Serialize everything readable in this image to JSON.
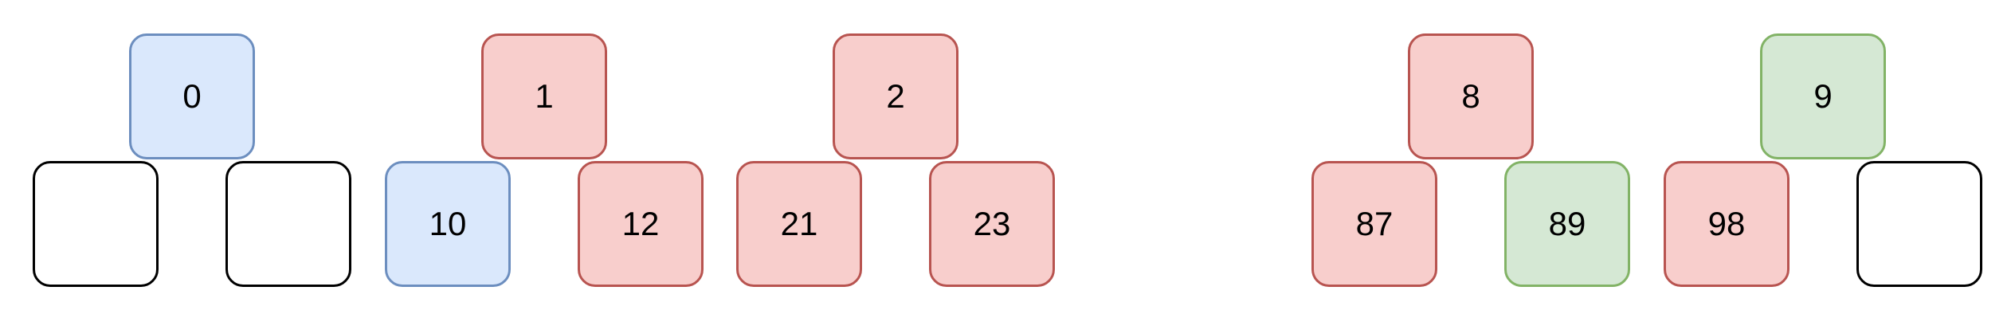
{
  "diagram": {
    "groups": [
      {
        "parent": {
          "label": "0",
          "style": "blue"
        },
        "children": [
          {
            "label": "",
            "style": "empty"
          },
          {
            "label": "",
            "style": "empty"
          }
        ]
      },
      {
        "parent": {
          "label": "1",
          "style": "red"
        },
        "children": [
          {
            "label": "10",
            "style": "blue"
          },
          {
            "label": "12",
            "style": "red"
          }
        ]
      },
      {
        "parent": {
          "label": "2",
          "style": "red"
        },
        "children": [
          {
            "label": "21",
            "style": "red"
          },
          {
            "label": "23",
            "style": "red"
          }
        ]
      },
      {
        "parent": {
          "label": "8",
          "style": "red"
        },
        "children": [
          {
            "label": "87",
            "style": "red"
          },
          {
            "label": "89",
            "style": "green"
          }
        ]
      },
      {
        "parent": {
          "label": "9",
          "style": "green"
        },
        "children": [
          {
            "label": "98",
            "style": "red"
          },
          {
            "label": "",
            "style": "empty"
          }
        ]
      }
    ],
    "colors": {
      "blue_fill": "#dae8fc",
      "blue_stroke": "#6c8ebf",
      "red_fill": "#f8cecc",
      "red_stroke": "#b85450",
      "green_fill": "#d5e8d4",
      "green_stroke": "#82b366",
      "empty_fill": "#ffffff",
      "empty_stroke": "#000000"
    }
  }
}
